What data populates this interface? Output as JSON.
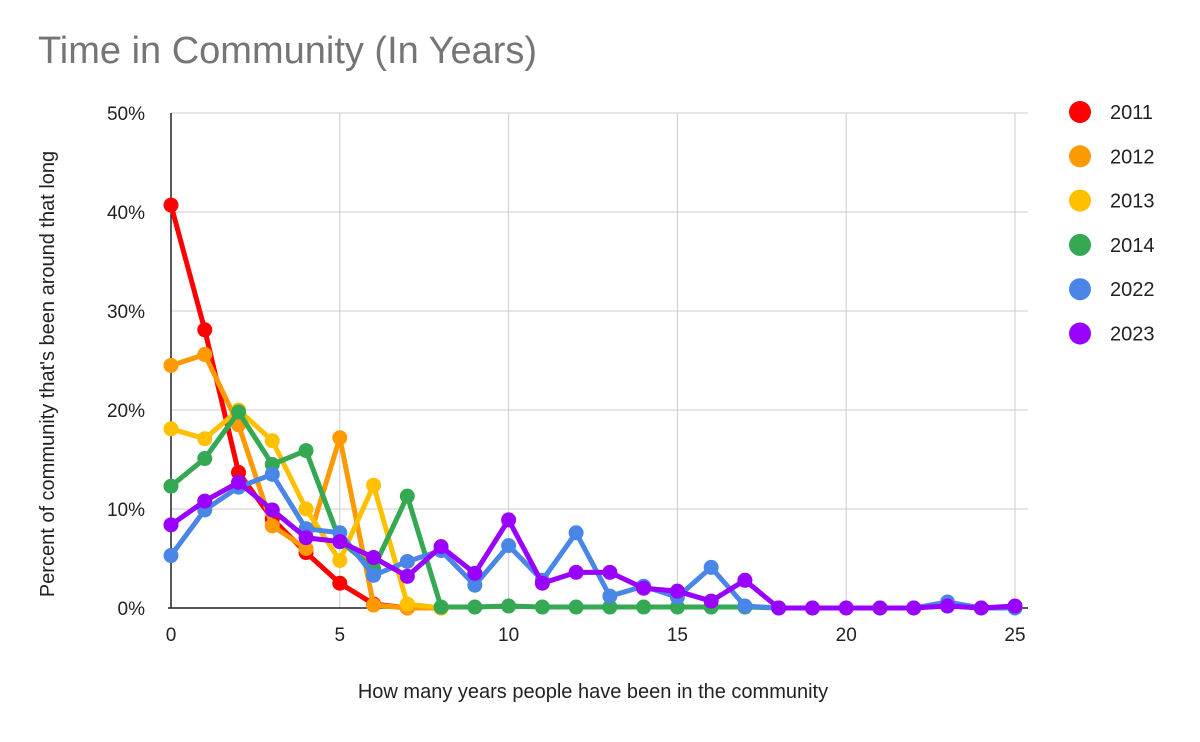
{
  "chart_data": {
    "type": "line",
    "title": "Time in Community (In Years)",
    "xlabel": "How many years people have been in the community",
    "ylabel": "Percent of community that's been around that long",
    "xlim": [
      0,
      25
    ],
    "ylim": [
      0,
      50
    ],
    "x_ticks": [
      0,
      5,
      10,
      15,
      20,
      25
    ],
    "y_ticks": [
      0,
      10,
      20,
      30,
      40,
      50
    ],
    "y_tick_labels": [
      "0%",
      "10%",
      "20%",
      "30%",
      "40%",
      "50%"
    ],
    "grid": true,
    "legend_position": "right",
    "series": [
      {
        "name": "2011",
        "color": "#ff0000",
        "points": [
          [
            0,
            40.7
          ],
          [
            1,
            28.1
          ],
          [
            2,
            13.7
          ],
          [
            3,
            9.0
          ],
          [
            4,
            5.6
          ],
          [
            5,
            2.5
          ],
          [
            6,
            0.4
          ],
          [
            7,
            0
          ],
          [
            8,
            0
          ]
        ]
      },
      {
        "name": "2012",
        "color": "#ff9900",
        "points": [
          [
            0,
            24.5
          ],
          [
            1,
            25.6
          ],
          [
            2,
            18.5
          ],
          [
            3,
            8.3
          ],
          [
            4,
            6.0
          ],
          [
            5,
            17.2
          ],
          [
            6,
            0.3
          ],
          [
            7,
            0
          ],
          [
            8,
            0
          ]
        ]
      },
      {
        "name": "2013",
        "color": "#ffc000",
        "points": [
          [
            0,
            18.1
          ],
          [
            1,
            17.1
          ],
          [
            2,
            20.0
          ],
          [
            3,
            16.9
          ],
          [
            4,
            10.0
          ],
          [
            5,
            4.8
          ],
          [
            6,
            12.4
          ],
          [
            7,
            0.4
          ],
          [
            8,
            0
          ]
        ]
      },
      {
        "name": "2014",
        "color": "#34a853",
        "points": [
          [
            0,
            12.3
          ],
          [
            1,
            15.1
          ],
          [
            2,
            19.8
          ],
          [
            3,
            14.5
          ],
          [
            4,
            15.9
          ],
          [
            5,
            6.8
          ],
          [
            6,
            4.0
          ],
          [
            7,
            11.3
          ],
          [
            8,
            0.1
          ],
          [
            9,
            0.1
          ],
          [
            10,
            0.2
          ],
          [
            11,
            0.1
          ],
          [
            12,
            0.1
          ],
          [
            13,
            0.1
          ],
          [
            14,
            0.1
          ],
          [
            15,
            0.1
          ],
          [
            16,
            0.1
          ],
          [
            17,
            0.1
          ],
          [
            18,
            0
          ]
        ]
      },
      {
        "name": "2022",
        "color": "#4a86e8",
        "points": [
          [
            0,
            5.3
          ],
          [
            1,
            9.9
          ],
          [
            2,
            12.2
          ],
          [
            3,
            13.5
          ],
          [
            4,
            8.0
          ],
          [
            5,
            7.6
          ],
          [
            6,
            3.3
          ],
          [
            7,
            4.7
          ],
          [
            8,
            5.8
          ],
          [
            9,
            2.3
          ],
          [
            10,
            6.3
          ],
          [
            11,
            2.8
          ],
          [
            12,
            7.6
          ],
          [
            13,
            1.2
          ],
          [
            14,
            2.2
          ],
          [
            15,
            1.1
          ],
          [
            16,
            4.1
          ],
          [
            17,
            0.2
          ],
          [
            18,
            0
          ],
          [
            19,
            0
          ],
          [
            20,
            0
          ],
          [
            21,
            0
          ],
          [
            22,
            0
          ],
          [
            23,
            0.6
          ],
          [
            24,
            0
          ],
          [
            25,
            0
          ]
        ]
      },
      {
        "name": "2023",
        "color": "#9900ff",
        "points": [
          [
            0,
            8.4
          ],
          [
            1,
            10.8
          ],
          [
            2,
            12.7
          ],
          [
            3,
            9.9
          ],
          [
            4,
            7.1
          ],
          [
            5,
            6.7
          ],
          [
            6,
            5.1
          ],
          [
            7,
            3.2
          ],
          [
            8,
            6.2
          ],
          [
            9,
            3.5
          ],
          [
            10,
            8.9
          ],
          [
            11,
            2.5
          ],
          [
            12,
            3.6
          ],
          [
            13,
            3.6
          ],
          [
            14,
            2.0
          ],
          [
            15,
            1.7
          ],
          [
            16,
            0.7
          ],
          [
            17,
            2.8
          ],
          [
            18,
            0
          ],
          [
            19,
            0
          ],
          [
            20,
            0
          ],
          [
            21,
            0
          ],
          [
            22,
            0
          ],
          [
            23,
            0.2
          ],
          [
            24,
            0
          ],
          [
            25,
            0.2
          ]
        ]
      }
    ]
  }
}
